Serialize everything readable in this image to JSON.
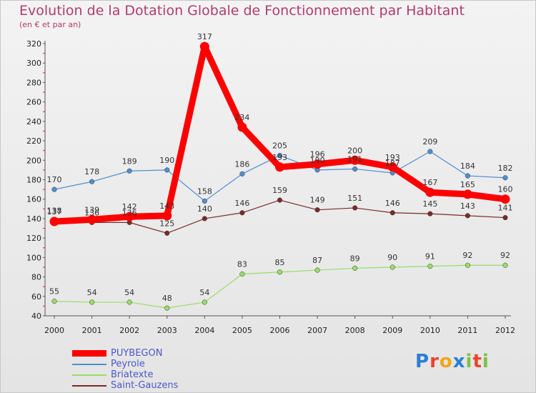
{
  "chart_data": {
    "type": "line",
    "title": "Evolution de la Dotation Globale de Fonctionnement par Habitant",
    "subtitle": "(en € et par an)",
    "x": [
      2000,
      2001,
      2002,
      2003,
      2004,
      2005,
      2006,
      2007,
      2008,
      2009,
      2010,
      2011,
      2012
    ],
    "xlabel": "",
    "ylabel": "",
    "ylim": [
      40,
      320
    ],
    "yticks": [
      40,
      60,
      80,
      100,
      120,
      140,
      160,
      180,
      200,
      220,
      240,
      260,
      280,
      300,
      320
    ],
    "grid": false,
    "legend_position": "bottom-left",
    "series": [
      {
        "name": "PUYBEGON",
        "color": "#ff0000",
        "emphasis": true,
        "values": [
          137,
          139,
          142,
          143,
          317,
          234,
          193,
          196,
          200,
          193,
          167,
          165,
          160
        ],
        "labels": [
          "137",
          "139",
          "142",
          "143",
          "317",
          "234",
          "193",
          "196",
          "200",
          "193",
          "167",
          "165",
          "160"
        ]
      },
      {
        "name": "Peyrole",
        "color": "#4f8fcf",
        "emphasis": false,
        "values": [
          170,
          178,
          189,
          190,
          158,
          186,
          205,
          190,
          191,
          187,
          209,
          184,
          182
        ],
        "labels": [
          "170",
          "178",
          "189",
          "190",
          "158",
          "186",
          "205",
          "190",
          "191",
          "187",
          "209",
          "184",
          "182"
        ]
      },
      {
        "name": "Briatexte",
        "color": "#99dd66",
        "emphasis": false,
        "values": [
          55,
          54,
          54,
          48,
          54,
          83,
          85,
          87,
          89,
          90,
          91,
          92,
          92
        ],
        "labels": [
          "55",
          "54",
          "54",
          "48",
          "54",
          "83",
          "85",
          "87",
          "89",
          "90",
          "91",
          "92",
          "92"
        ]
      },
      {
        "name": "Saint-Gauzens",
        "color": "#7a2a2a",
        "emphasis": false,
        "values": [
          138,
          136,
          136,
          125,
          140,
          146,
          159,
          149,
          151,
          146,
          145,
          143,
          141
        ],
        "labels": [
          "138",
          "136",
          "136",
          "125",
          "140",
          "146",
          "159",
          "149",
          "151",
          "146",
          "145",
          "143",
          "141"
        ]
      }
    ]
  },
  "brand": {
    "logo_letters": [
      {
        "ch": "P",
        "color": "#2a7fd4"
      },
      {
        "ch": "r",
        "color": "#e8452c"
      },
      {
        "ch": "o",
        "color": "#f2a51a"
      },
      {
        "ch": "x",
        "color": "#2a7fd4"
      },
      {
        "ch": "i",
        "color": "#7cc242"
      },
      {
        "ch": "t",
        "color": "#e8452c"
      },
      {
        "ch": "i",
        "color": "#7cc242"
      }
    ]
  }
}
